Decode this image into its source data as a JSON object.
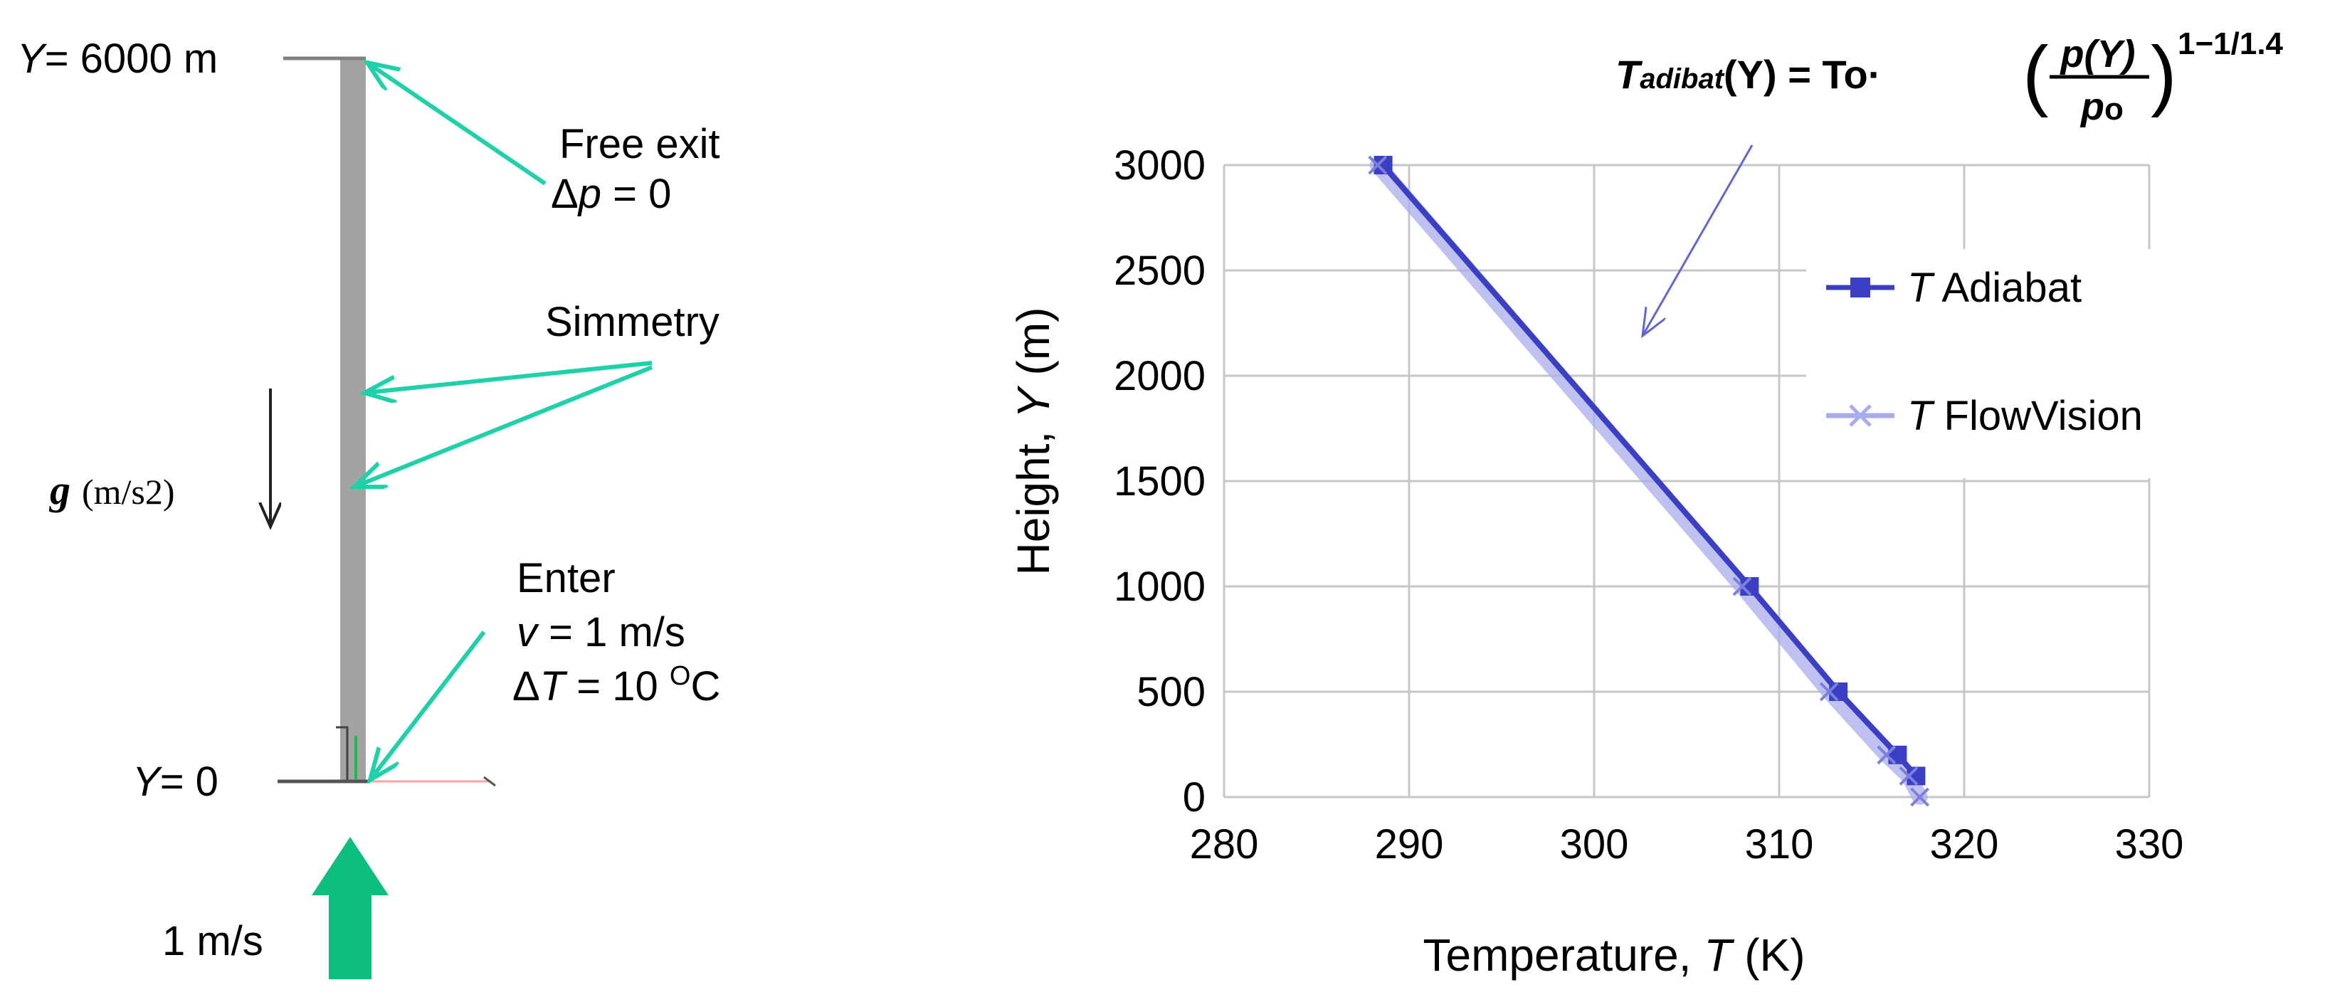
{
  "colors": {
    "annotation_arrow": "#1fd1a8",
    "inlet_arrow": "#0cbf7f",
    "column": "#a3a3a3",
    "series_adiabat": "#3a3fc4",
    "series_flowvision": "#a9acec",
    "grid": "#c6c6c6"
  },
  "schematic": {
    "top_label_var": "Y",
    "top_label_value": "= 6000 m",
    "bottom_label_var": "Y",
    "bottom_label_value": "= 0",
    "free_exit": {
      "line1": "Free exit",
      "delta": "Δ",
      "var": "p",
      "value": " = 0"
    },
    "symmetry": "Simmetry",
    "gravity": {
      "symbol": "g",
      "units": "(m/s2)"
    },
    "enter": {
      "title": "Enter",
      "velocity_var": "v",
      "velocity_value": " = 1 m/s",
      "delta": "Δ",
      "temp_var": "T",
      "temp_value": " = 10 ",
      "temp_sup": "O",
      "temp_unit": "C"
    },
    "inlet_speed": "1 m/s"
  },
  "formula": {
    "lhs_var": "T",
    "lhs_sub": "adibat",
    "lhs_arg": "(Y) = To·",
    "numerator": "p(Y)",
    "denominator": "p",
    "denominator_sub": "o",
    "exponent": "1−1/1.4"
  },
  "chart_data": {
    "type": "line",
    "title": "",
    "xlabel_text": "Temperature, ",
    "xlabel_var": "T",
    "xlabel_unit": " (K)",
    "ylabel_text": "Height, ",
    "ylabel_var": "Y",
    "ylabel_unit": " (m)",
    "xlim": [
      280,
      330
    ],
    "ylim": [
      0,
      3000
    ],
    "xticks": [
      "280",
      "290",
      "300",
      "310",
      "320",
      "330"
    ],
    "yticks": [
      "0",
      "500",
      "1000",
      "1500",
      "2000",
      "2500",
      "3000"
    ],
    "grid": true,
    "legend_position": "right",
    "series": [
      {
        "name_var": "T",
        "name_text": " Adiabat",
        "marker": "square",
        "x": [
          288.6,
          308.4,
          313.2,
          316.4,
          317.4
        ],
        "y": [
          3000,
          1000,
          500,
          200,
          100
        ]
      },
      {
        "name_var": "T",
        "name_text": " FlowVision",
        "marker": "cross",
        "x": [
          288.3,
          308.0,
          312.7,
          315.8,
          317.0,
          317.6
        ],
        "y": [
          3000,
          1000,
          500,
          200,
          100,
          0
        ]
      }
    ]
  }
}
